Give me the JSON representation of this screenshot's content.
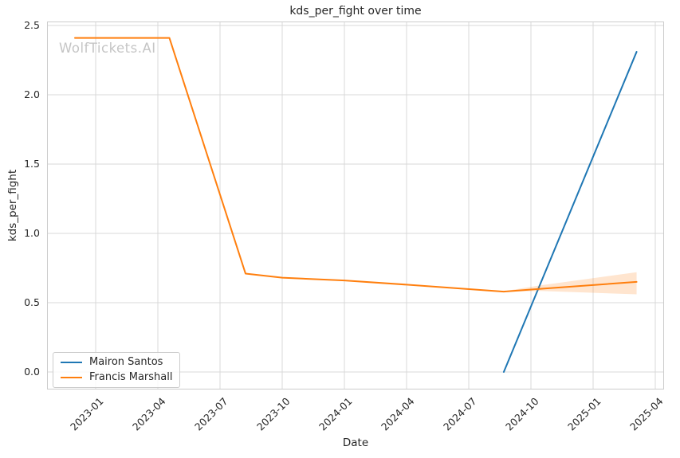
{
  "chart_data": {
    "type": "line",
    "title": "kds_per_fight over time",
    "xlabel": "Date",
    "ylabel": "kds_per_fight",
    "watermark": "WolfTickets.AI",
    "x_tick_labels": [
      "2023-01",
      "2023-04",
      "2023-07",
      "2023-10",
      "2024-01",
      "2024-04",
      "2024-07",
      "2024-10",
      "2025-01",
      "2025-04"
    ],
    "y_tick_labels": [
      "0.0",
      "0.5",
      "1.0",
      "1.5",
      "2.0",
      "2.5"
    ],
    "y_tick_values": [
      0.0,
      0.5,
      1.0,
      1.5,
      2.0,
      2.5
    ],
    "ylim": [
      -0.12,
      2.53
    ],
    "grid": true,
    "grid_color": "#d9d9d9",
    "spine_color": "#cccccc",
    "legend_position": "lower left",
    "series": [
      {
        "name": "Mairon Santos",
        "color": "#1f77b4",
        "points": [
          [
            "2024-08-22",
            0.0
          ],
          [
            "2025-03-04",
            2.31
          ]
        ]
      },
      {
        "name": "Francis Marshall",
        "color": "#ff7f0e",
        "band_fill": "rgba(255,127,14,0.2)",
        "points": [
          [
            "2022-12-01",
            2.41
          ],
          [
            "2023-04-18",
            2.41
          ],
          [
            "2023-08-08",
            0.71
          ],
          [
            "2023-10-01",
            0.68
          ],
          [
            "2024-01-01",
            0.66
          ],
          [
            "2024-04-01",
            0.63
          ],
          [
            "2024-08-22",
            0.58
          ],
          [
            "2024-10-15",
            0.6
          ],
          [
            "2025-03-04",
            0.65
          ]
        ],
        "band": [
          [
            "2024-08-22",
            0.578,
            0.583
          ],
          [
            "2024-10-15",
            0.585,
            0.625
          ],
          [
            "2025-03-04",
            0.56,
            0.72
          ]
        ]
      }
    ]
  }
}
